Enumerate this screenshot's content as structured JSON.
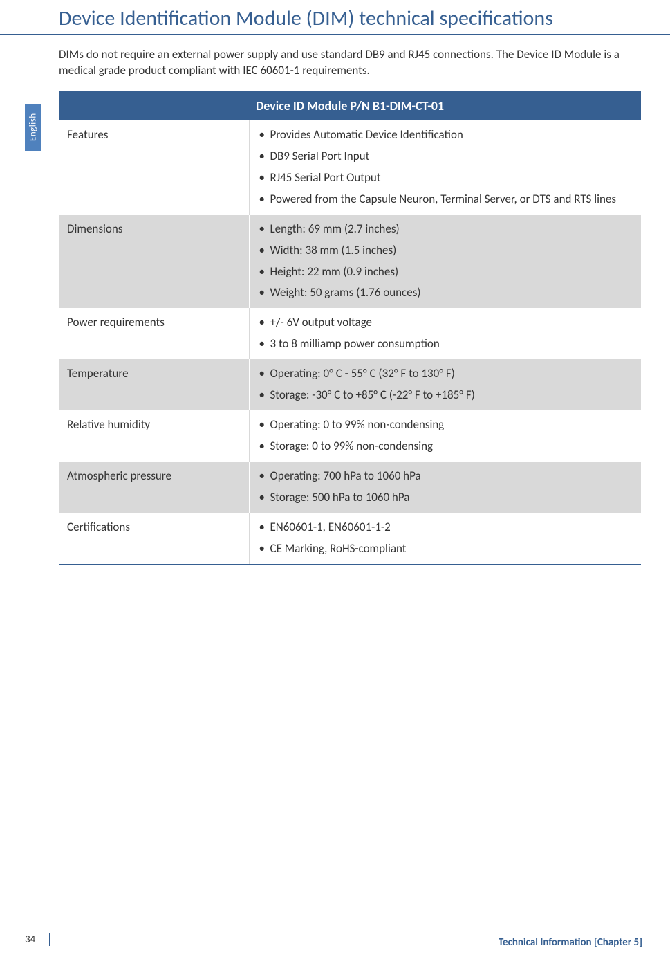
{
  "title": "Device Identification Module (DIM) technical specifications",
  "intro": "DIMs do not require an external power supply and use standard DB9 and RJ45 connections. The Device ID Module is a medical grade product compliant with IEC 60601-1 requirements.",
  "language_tab": "English",
  "table_header": "Device ID Module P/N B1-DIM-CT-01",
  "rows": [
    {
      "label": "Features",
      "items": [
        "Provides Automatic Device Identification",
        "DB9 Serial Port Input",
        "RJ45 Serial Port Output",
        "Powered from the Capsule Neuron, Terminal Server, or DTS and RTS lines"
      ]
    },
    {
      "label": "Dimensions",
      "items": [
        "Length: 69 mm (2.7 inches)",
        "Width: 38 mm (1.5 inches)",
        "Height: 22 mm (0.9 inches)",
        "Weight: 50 grams (1.76 ounces)"
      ]
    },
    {
      "label": "Power requirements",
      "items": [
        "+/- 6V output voltage",
        "3 to 8 milliamp power consumption"
      ]
    },
    {
      "label": "Temperature",
      "items": [
        "Operating: 0° C - 55° C (32° F to 130° F)",
        "Storage: -30° C to +85° C (-22° F to +185° F)"
      ]
    },
    {
      "label": "Relative humidity",
      "items": [
        "Operating: 0 to 99% non-condensing",
        "Storage: 0 to 99% non-condensing"
      ]
    },
    {
      "label": "Atmospheric pressure",
      "items": [
        "Operating: 700 hPa to 1060 hPa",
        "Storage: 500 hPa to 1060 hPa"
      ]
    },
    {
      "label": "Certifications",
      "items": [
        "EN60601-1, EN60601-1-2",
        "CE Marking, RoHS-compliant"
      ]
    }
  ],
  "footer": {
    "page_number": "34",
    "text": "Technical Information [Chapter 5]"
  },
  "colors": {
    "title_color": "#365f91",
    "header_bg": "#365f91",
    "tab_bg": "#4f81bd",
    "row_alt_bg": "#d9d9d9",
    "text_color": "#333333",
    "white": "#ffffff"
  }
}
